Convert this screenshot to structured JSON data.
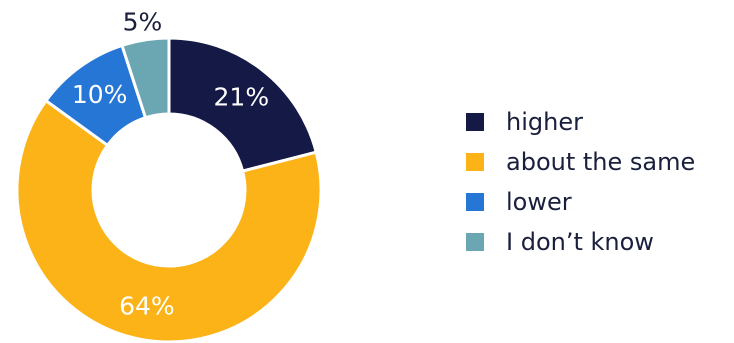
{
  "chart_data": {
    "type": "pie",
    "donut": true,
    "legend_position": "right",
    "slices": [
      {
        "label": "higher",
        "value": 21,
        "display": "21%",
        "color": "#141a45",
        "label_color": "#ffffff"
      },
      {
        "label": "about the same",
        "value": 64,
        "display": "64%",
        "color": "#fbb318",
        "label_color": "#ffffff"
      },
      {
        "label": "lower",
        "value": 10,
        "display": "10%",
        "color": "#2676d6",
        "label_color": "#ffffff"
      },
      {
        "label": "I don’t know",
        "value": 5,
        "display": "5%",
        "color": "#6ba6b3",
        "label_color": "#1a1f3c"
      }
    ]
  }
}
